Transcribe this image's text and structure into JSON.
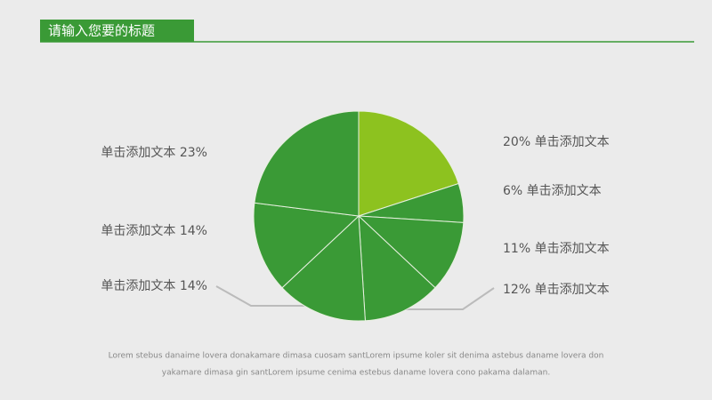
{
  "header": {
    "title": "请输入您要的标题"
  },
  "chart_data": {
    "type": "pie",
    "values": [
      20,
      6,
      11,
      12,
      14,
      14,
      23
    ],
    "value_labels": [
      "20% 单击添加文本",
      "6% 单击添加文本",
      "11% 单击添加文本",
      "12% 单击添加文本",
      "单击添加文本 14%",
      "单击添加文本 14%",
      "单击添加文本 23%"
    ],
    "colors": [
      "#8dc21f",
      "#3a9a36",
      "#3a9a36",
      "#3a9a36",
      "#3a9a36",
      "#3a9a36",
      "#3a9a36"
    ]
  },
  "footer": {
    "lines": [
      "Lorem stebus danaime lovera donakamare dimasa cuosam santLorem ipsume koler sit denima astebus daname lovera don",
      "yakamare dimasa gin santLorem ipsume cenima estebus daname lovera cono pakama dalaman."
    ]
  }
}
